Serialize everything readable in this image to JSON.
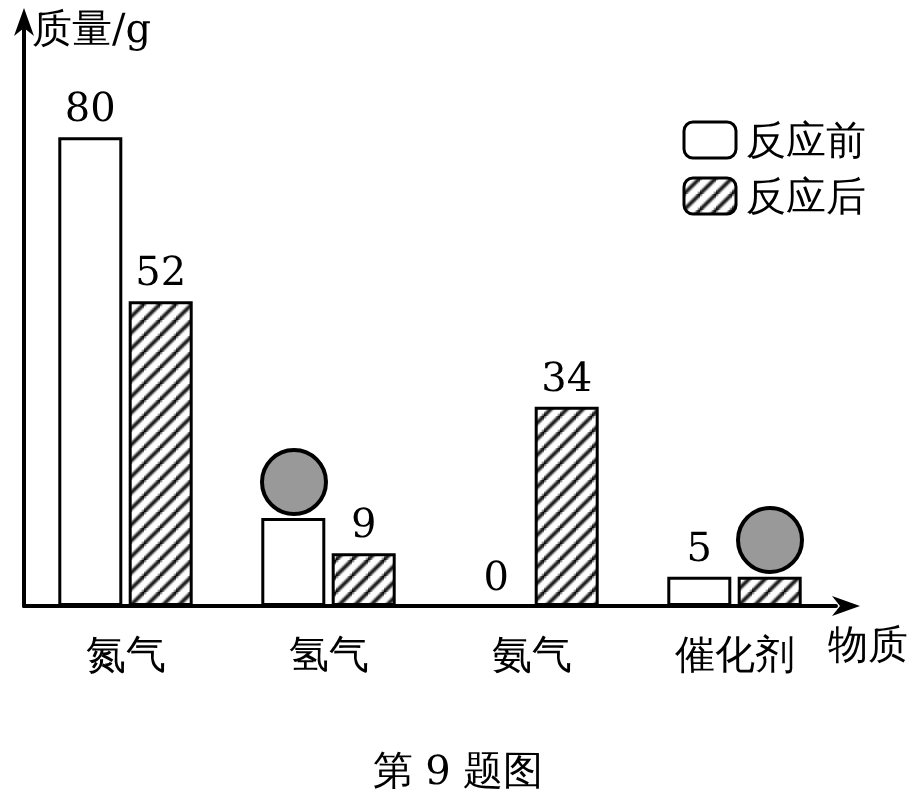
{
  "chart_data": {
    "type": "bar",
    "ylabel": "质量/g",
    "xlabel": "物质",
    "categories": [
      "氮气",
      "氢气",
      "氨气",
      "催化剂"
    ],
    "series": [
      {
        "name": "反应前",
        "color": "#ffffff",
        "values": [
          80,
          15,
          0,
          5
        ],
        "value_labels": [
          "80",
          null,
          "0",
          "5"
        ]
      },
      {
        "name": "反应后",
        "color": "#000000",
        "values": [
          52,
          9,
          34,
          5
        ],
        "value_labels": [
          "52",
          "9",
          "34",
          null
        ]
      }
    ],
    "ylim": [
      0,
      100
    ],
    "tick_labels": "x",
    "grid": false,
    "legend": "top right",
    "annotations": [
      "第 9 题图"
    ]
  }
}
